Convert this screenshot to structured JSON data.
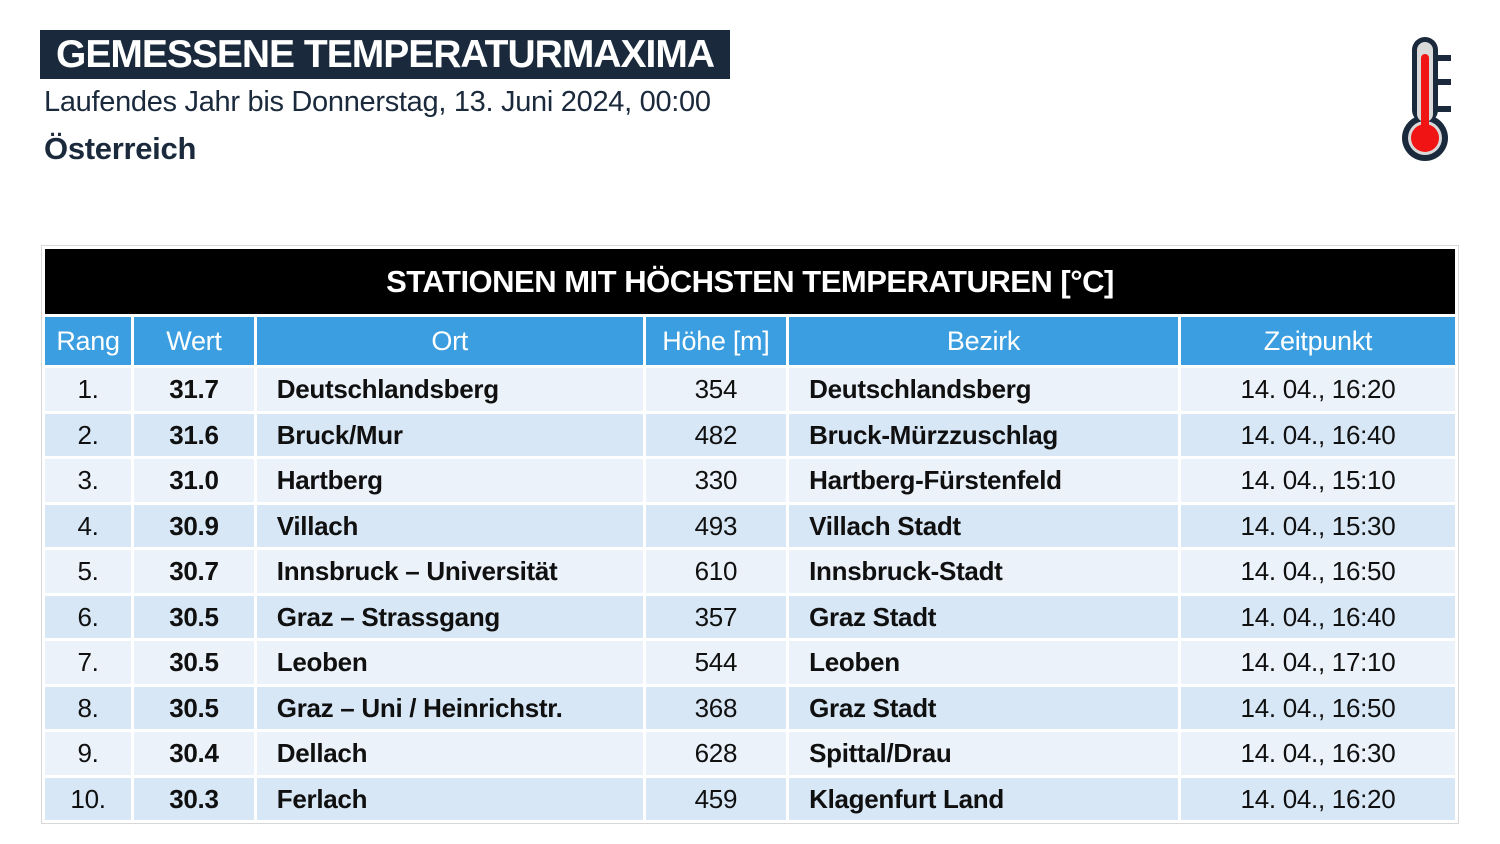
{
  "header": {
    "title": "GEMESSENE TEMPERATURMAXIMA",
    "subtitle": "Laufendes Jahr bis Donnerstag, 13. Juni 2024, 00:00",
    "region": "Österreich"
  },
  "icons": {
    "thermometer": "thermometer-icon"
  },
  "colors": {
    "navy": "#1a2a3c",
    "header_blue": "#3a9ee0",
    "row_light": "#ebf2fa",
    "row_dark": "#d7e7f6",
    "thermometer_red": "#f01414",
    "thermometer_gray": "#d9d9d9",
    "table_title_bg": "#000000"
  },
  "table": {
    "title": "STATIONEN MIT HÖCHSTEN TEMPERATUREN [°C]",
    "columns": [
      "Rang",
      "Wert",
      "Ort",
      "Höhe [m]",
      "Bezirk",
      "Zeitpunkt"
    ],
    "rows": [
      [
        "1.",
        "31.7",
        "Deutschlandsberg",
        "354",
        "Deutschlandsberg",
        "14. 04., 16:20"
      ],
      [
        "2.",
        "31.6",
        "Bruck/Mur",
        "482",
        "Bruck-Mürzzuschlag",
        "14. 04., 16:40"
      ],
      [
        "3.",
        "31.0",
        "Hartberg",
        "330",
        "Hartberg-Fürstenfeld",
        "14. 04., 15:10"
      ],
      [
        "4.",
        "30.9",
        "Villach",
        "493",
        "Villach Stadt",
        "14. 04., 15:30"
      ],
      [
        "5.",
        "30.7",
        "Innsbruck – Universität",
        "610",
        "Innsbruck-Stadt",
        "14. 04., 16:50"
      ],
      [
        "6.",
        "30.5",
        "Graz – Strassgang",
        "357",
        "Graz Stadt",
        "14. 04., 16:40"
      ],
      [
        "7.",
        "30.5",
        "Leoben",
        "544",
        "Leoben",
        "14. 04., 17:10"
      ],
      [
        "8.",
        "30.5",
        "Graz – Uni / Heinrichstr.",
        "368",
        "Graz Stadt",
        "14. 04., 16:50"
      ],
      [
        "9.",
        "30.4",
        "Dellach",
        "628",
        "Spittal/Drau",
        "14. 04., 16:30"
      ],
      [
        "10.",
        "30.3",
        "Ferlach",
        "459",
        "Klagenfurt Land",
        "14. 04., 16:20"
      ]
    ]
  }
}
